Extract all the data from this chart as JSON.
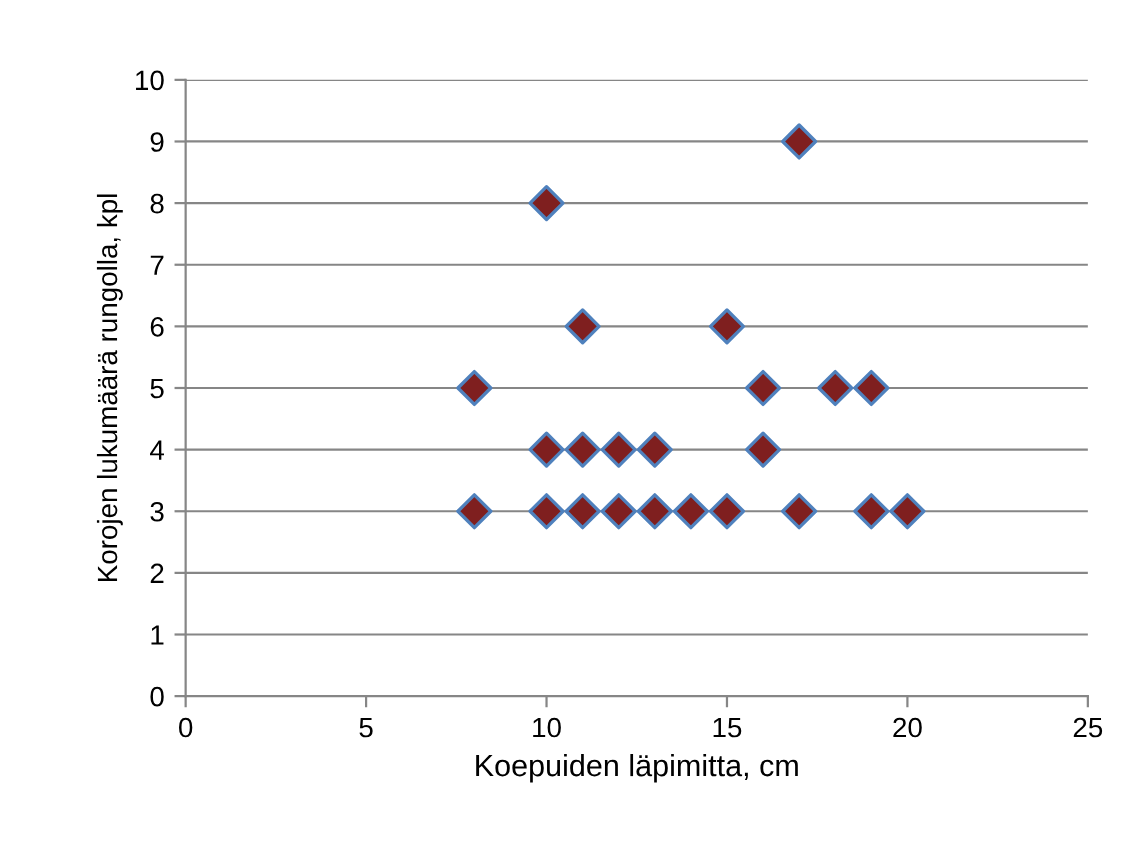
{
  "chart_data": {
    "type": "scatter",
    "xlabel": "Koepuiden läpimitta, cm",
    "ylabel": "Korojen lukumäärä rungolla, kpl",
    "x": [
      8,
      10,
      11,
      12,
      13,
      14,
      15,
      17,
      19,
      20,
      10,
      11,
      12,
      13,
      16,
      8,
      16,
      18,
      19,
      11,
      15,
      10,
      17
    ],
    "series": [
      {
        "color": "#7f1f1f",
        "values": [
          3,
          3,
          3,
          3,
          3,
          3,
          3,
          3,
          3,
          3,
          4,
          4,
          4,
          4,
          4,
          5,
          5,
          5,
          5,
          6,
          6,
          8,
          9
        ]
      }
    ],
    "xlim": [
      0,
      25
    ],
    "xticks": [
      0,
      5,
      10,
      15,
      20,
      25
    ],
    "ylim": [
      0,
      10
    ],
    "yticks": [
      0,
      1,
      2,
      3,
      4,
      5,
      6,
      7,
      8,
      9,
      10
    ],
    "grid": "y",
    "marker": "diamond"
  }
}
